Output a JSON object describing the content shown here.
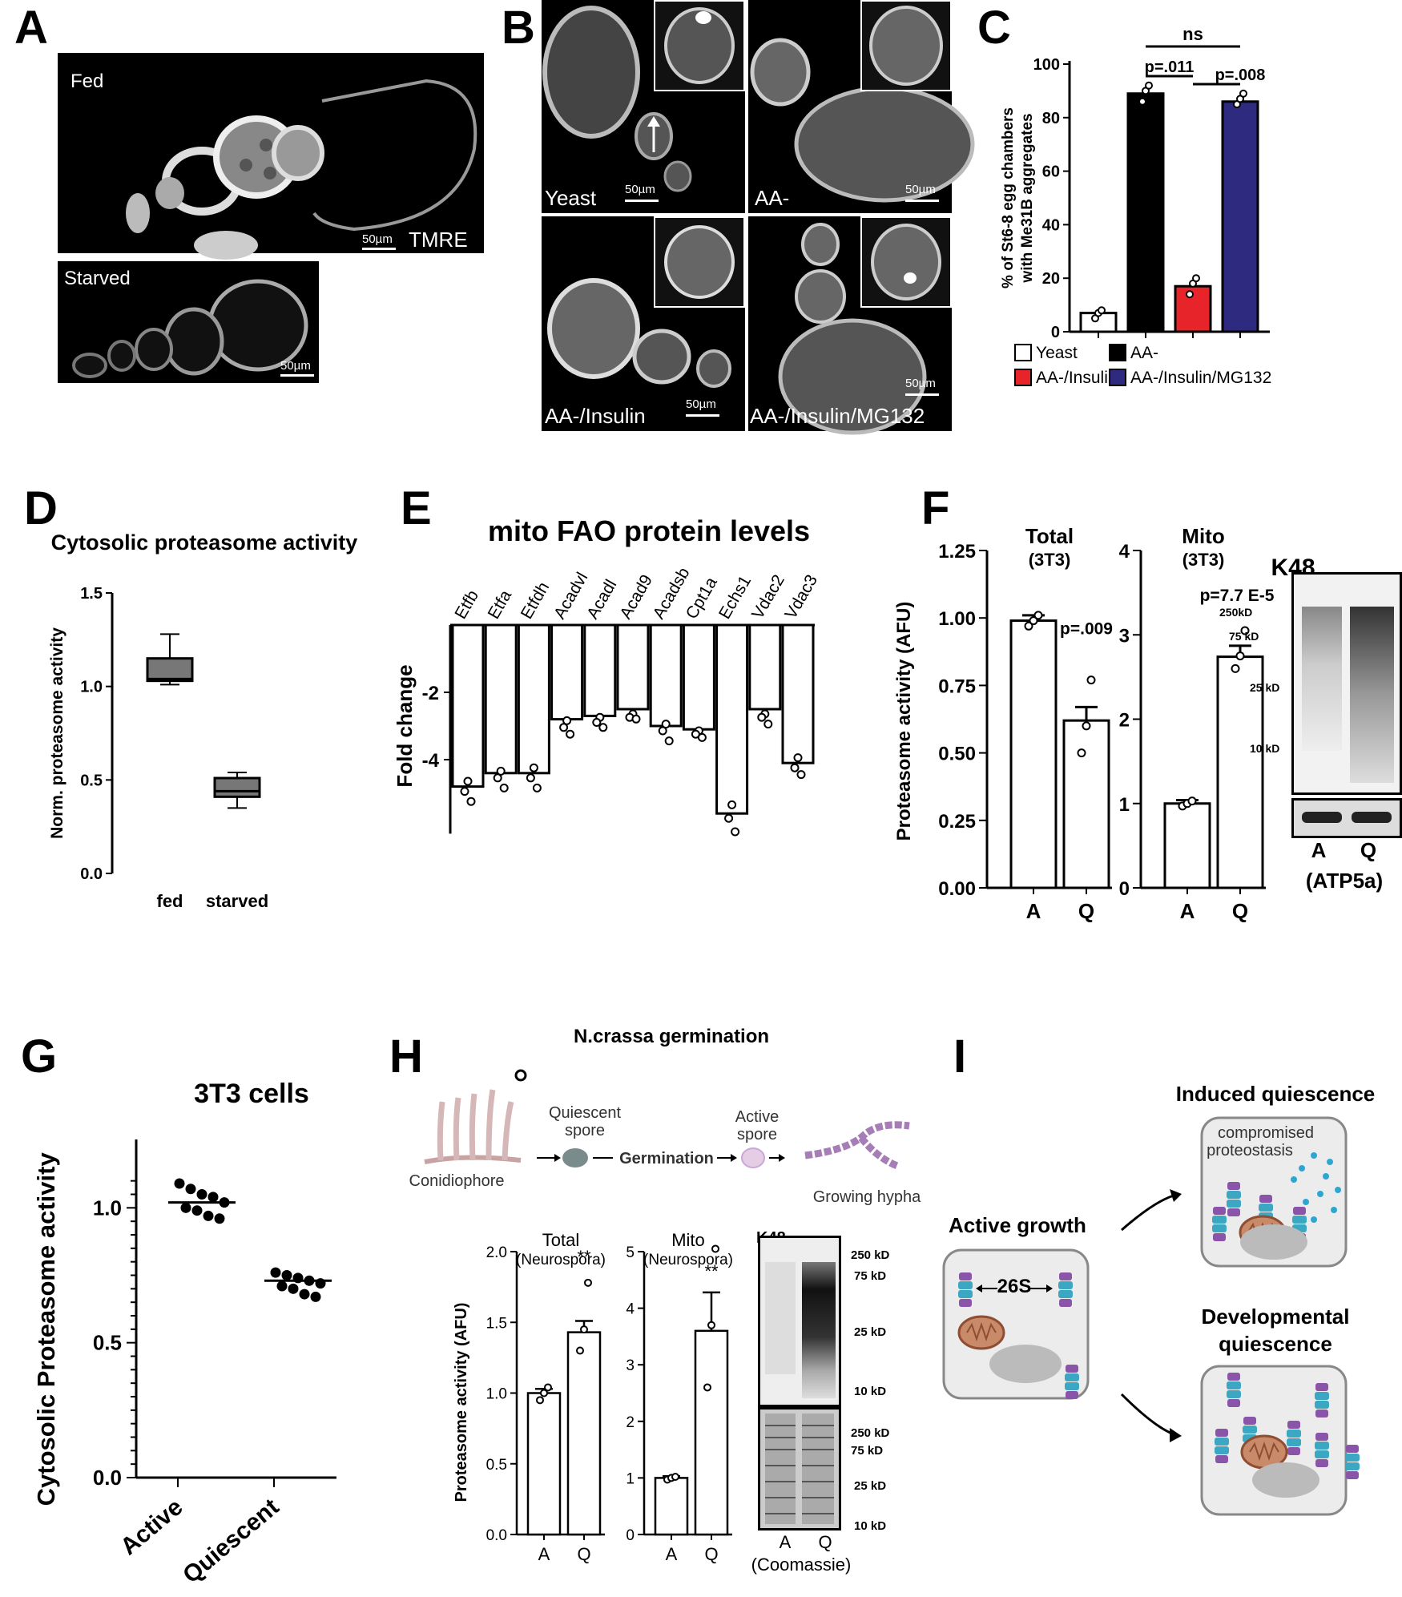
{
  "panels": {
    "A": {
      "label": "A",
      "fed_label": "Fed",
      "starved_label": "Starved",
      "scale_fed": "50µm",
      "stain": "TMRE",
      "scale_starved": "50µm"
    },
    "B": {
      "label": "B",
      "images": [
        {
          "label": "Yeast",
          "scale": "50µm"
        },
        {
          "label": "AA-",
          "scale": "50µm"
        },
        {
          "label": "AA-/Insulin",
          "scale": "50µm"
        },
        {
          "label": "AA-/Insulin/MG132",
          "scale": "50µm"
        }
      ]
    },
    "C": {
      "label": "C"
    },
    "D": {
      "label": "D"
    },
    "E": {
      "label": "E"
    },
    "F": {
      "label": "F"
    },
    "G": {
      "label": "G"
    },
    "H": {
      "label": "H",
      "title": "N.crassa germination",
      "schematic": {
        "conidiophore": "Conidiophore",
        "quiescent": [
          "Quiescent",
          "spore"
        ],
        "germination": "Germination",
        "active": [
          "Active",
          "spore"
        ],
        "hypha": "Growing hypha"
      }
    },
    "I": {
      "label": "I",
      "active_title": "Active growth",
      "complex": "26S",
      "induced_title": "Induced quiescence",
      "compromised": [
        "compromised",
        "proteostasis"
      ],
      "developmental_title": [
        "Developmental",
        "quiescence"
      ]
    }
  },
  "blots": {
    "F": {
      "title": "K48",
      "markers": [
        "250kD",
        "75 kD",
        "25 kD",
        "10 kD"
      ],
      "lanes": [
        "A",
        "Q"
      ],
      "loading": "(ATP5a)"
    },
    "H": {
      "title": "K48",
      "markers": [
        "250 kD",
        "75 kD",
        "25 kD",
        "10 kD"
      ],
      "coomassie_markers": [
        "250 kD",
        "75 kD",
        "25 kD",
        "10 kD"
      ],
      "lanes": [
        "A",
        "Q"
      ],
      "loading": "(Coomassie)"
    }
  },
  "chart_data": [
    {
      "id": "C",
      "type": "bar",
      "ylabel": "% of St6-8 egg chambers with Me31B aggregates",
      "ylim": [
        0,
        100
      ],
      "yticks": [
        0,
        20,
        40,
        60,
        80,
        100
      ],
      "categories": [
        "Yeast",
        "AA-",
        "AA-/Insulin",
        "AA-/Insulin/MG132"
      ],
      "values": [
        7,
        89,
        17,
        86
      ],
      "points": [
        [
          5,
          7,
          8
        ],
        [
          86,
          90,
          92
        ],
        [
          14,
          18,
          20
        ],
        [
          85,
          87,
          89
        ]
      ],
      "colors": [
        "#ffffff",
        "#000000",
        "#e8242b",
        "#2e2a7f"
      ],
      "legend": [
        "Yeast",
        "AA-/Insulin",
        "AA-",
        "AA-/Insulin/MG132"
      ],
      "annotations": [
        "ns",
        "p=.011",
        "p=.008"
      ]
    },
    {
      "id": "D",
      "type": "box",
      "title": "Cytosolic proteasome activity",
      "ylabel": "Norm. proteasome activity",
      "ylim": [
        0,
        1.5
      ],
      "yticks": [
        "0.0",
        "0.5",
        "1.0",
        "1.5"
      ],
      "categories": [
        "fed",
        "starved"
      ],
      "boxes": [
        {
          "min": 1.01,
          "q1": 1.03,
          "median": 1.04,
          "q3": 1.15,
          "max": 1.28
        },
        {
          "min": 0.35,
          "q1": 0.41,
          "median": 0.44,
          "q3": 0.51,
          "max": 0.54
        }
      ]
    },
    {
      "id": "E",
      "type": "bar",
      "title": "mito FAO protein levels",
      "ylabel": "Fold change",
      "yticks": [
        "-2",
        "-4"
      ],
      "categories": [
        "Etfb",
        "Etfa",
        "Etfdh",
        "Acadvl",
        "Acadl",
        "Acad9",
        "Acadsb",
        "Cpt1a",
        "Echs1",
        "Vdac2",
        "Vdac3"
      ],
      "values": [
        -4.8,
        -4.4,
        -4.4,
        -2.8,
        -2.7,
        -2.5,
        -3.0,
        -3.1,
        -5.6,
        -2.5,
        -4.1
      ],
      "points": [
        [
          -4.5,
          -4.8,
          -5.1
        ],
        [
          -4.2,
          -4.4,
          -4.7
        ],
        [
          -4.1,
          -4.4,
          -4.7
        ],
        [
          -2.7,
          -2.9,
          -3.1
        ],
        [
          -2.6,
          -2.75,
          -2.9
        ],
        [
          -2.5,
          -2.6,
          -2.65
        ],
        [
          -2.8,
          -3.0,
          -3.3
        ],
        [
          -3.0,
          -3.1,
          -3.2
        ],
        [
          -5.2,
          -5.6,
          -6.0
        ],
        [
          -2.5,
          -2.6,
          -2.8
        ],
        [
          -3.8,
          -4.1,
          -4.3
        ]
      ]
    },
    {
      "id": "F-total",
      "type": "bar",
      "title": "Total",
      "subtitle": "(3T3)",
      "ylabel": "Proteasome activity (AFU)",
      "ylim": [
        0,
        1.25
      ],
      "yticks": [
        "0.00",
        "0.25",
        "0.50",
        "0.75",
        "1.00",
        "1.25"
      ],
      "categories": [
        "A",
        "Q"
      ],
      "values": [
        0.99,
        0.62
      ],
      "errors": [
        0.02,
        0.05
      ],
      "points": [
        [
          0.97,
          0.99,
          1.01
        ],
        [
          0.5,
          0.6,
          0.77
        ]
      ],
      "annotation": "p=.009"
    },
    {
      "id": "F-mito",
      "type": "bar",
      "title": "Mito",
      "subtitle": "(3T3)",
      "ylim": [
        0,
        4
      ],
      "yticks": [
        "0",
        "1",
        "2",
        "3",
        "4"
      ],
      "categories": [
        "A",
        "Q"
      ],
      "values": [
        1.0,
        2.74
      ],
      "errors": [
        0.04,
        0.13
      ],
      "points": [
        [
          0.97,
          1.0,
          1.03
        ],
        [
          2.6,
          2.75,
          3.05
        ]
      ],
      "annotation": "p=7.7 E-5"
    },
    {
      "id": "G",
      "type": "scatter",
      "title": "3T3 cells",
      "ylabel": "Cytosolic Proteasome activity",
      "ylim": [
        0,
        1.2
      ],
      "yticks": [
        "0.0",
        "0.5",
        "1.0"
      ],
      "categories": [
        "Active",
        "Quiescent"
      ],
      "points": [
        [
          1.09,
          1.07,
          1.05,
          1.04,
          1.02,
          1.0,
          0.99,
          0.97,
          0.96
        ],
        [
          0.76,
          0.75,
          0.74,
          0.73,
          0.72,
          0.71,
          0.7,
          0.68,
          0.67
        ]
      ],
      "means": [
        1.02,
        0.73
      ]
    },
    {
      "id": "H-total",
      "type": "bar",
      "title": "Total",
      "subtitle": "(Neurospora)",
      "ylabel": "Proteasome activity (AFU)",
      "ylim": [
        0,
        2.0
      ],
      "yticks": [
        "0.0",
        "0.5",
        "1.0",
        "1.5",
        "2.0"
      ],
      "categories": [
        "A",
        "Q"
      ],
      "values": [
        1.0,
        1.43
      ],
      "errors": [
        0.03,
        0.08
      ],
      "points": [
        [
          0.95,
          1.0,
          1.04
        ],
        [
          1.3,
          1.45,
          1.78
        ]
      ],
      "annotation": "**"
    },
    {
      "id": "H-mito",
      "type": "bar",
      "title": "Mito",
      "subtitle": "(Neurospora)",
      "ylim": [
        0,
        5
      ],
      "yticks": [
        "0",
        "1",
        "2",
        "3",
        "4",
        "5"
      ],
      "categories": [
        "A",
        "Q"
      ],
      "values": [
        1.0,
        3.6
      ],
      "errors": [
        0.03,
        0.68
      ],
      "points": [
        [
          0.97,
          1.0,
          1.02
        ],
        [
          2.6,
          3.7,
          5.05
        ]
      ],
      "annotation": "**"
    }
  ]
}
